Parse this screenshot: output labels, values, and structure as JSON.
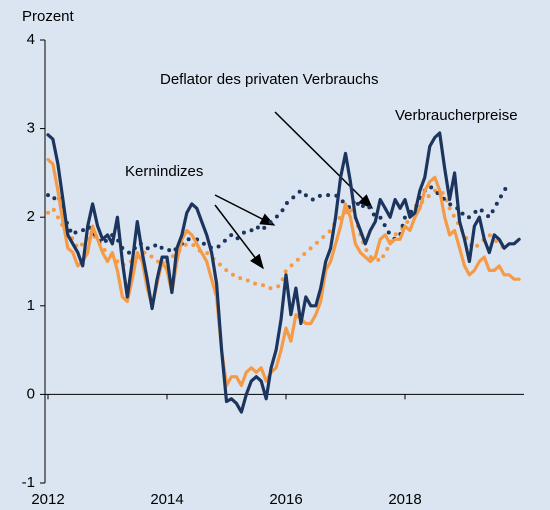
{
  "chart_data": {
    "type": "line",
    "ylabel": "Prozent",
    "annotations": [
      "Deflator des privaten Verbrauchs",
      "Verbraucherpreise",
      "Kernindizes"
    ],
    "xlim": [
      2012,
      2020
    ],
    "xticks": [
      2012,
      2014,
      2016,
      2018
    ],
    "ylim": [
      -1,
      4
    ],
    "yticks": [
      -1,
      0,
      1,
      2,
      3,
      4
    ],
    "x": [
      2012,
      2012.083,
      2012.167,
      2012.25,
      2012.333,
      2012.417,
      2012.5,
      2012.583,
      2012.667,
      2012.75,
      2012.833,
      2012.917,
      2013,
      2013.083,
      2013.167,
      2013.25,
      2013.333,
      2013.417,
      2013.5,
      2013.583,
      2013.667,
      2013.75,
      2013.833,
      2013.917,
      2014,
      2014.083,
      2014.167,
      2014.25,
      2014.333,
      2014.417,
      2014.5,
      2014.583,
      2014.667,
      2014.75,
      2014.833,
      2014.917,
      2015,
      2015.083,
      2015.167,
      2015.25,
      2015.333,
      2015.417,
      2015.5,
      2015.583,
      2015.667,
      2015.75,
      2015.833,
      2015.917,
      2016,
      2016.083,
      2016.167,
      2016.25,
      2016.333,
      2016.417,
      2016.5,
      2016.583,
      2016.667,
      2016.75,
      2016.833,
      2016.917,
      2017,
      2017.083,
      2017.167,
      2017.25,
      2017.333,
      2017.417,
      2017.5,
      2017.583,
      2017.667,
      2017.75,
      2017.833,
      2017.917,
      2018,
      2018.083,
      2018.167,
      2018.25,
      2018.333,
      2018.417,
      2018.5,
      2018.583,
      2018.667,
      2018.75,
      2018.833,
      2018.917,
      2019,
      2019.083,
      2019.167,
      2019.25,
      2019.333,
      2019.417,
      2019.5,
      2019.583,
      2019.667,
      2019.75,
      2019.833,
      2019.917
    ],
    "series": [
      {
        "color": "#1c355e",
        "style": "solid",
        "values": [
          2.93,
          2.88,
          2.6,
          2.2,
          1.8,
          1.7,
          1.6,
          1.45,
          1.9,
          2.15,
          1.9,
          1.75,
          1.8,
          1.7,
          2.0,
          1.5,
          1.1,
          1.5,
          1.95,
          1.6,
          1.3,
          0.97,
          1.3,
          1.55,
          1.55,
          1.15,
          1.65,
          1.8,
          2.05,
          2.15,
          2.1,
          1.95,
          1.8,
          1.6,
          1.25,
          0.5,
          -0.08,
          -0.05,
          -0.1,
          -0.2,
          0.0,
          0.15,
          0.2,
          0.15,
          -0.05,
          0.3,
          0.5,
          0.85,
          1.35,
          0.9,
          1.2,
          0.8,
          1.1,
          1.0,
          1.0,
          1.2,
          1.5,
          1.65,
          2.0,
          2.45,
          2.72,
          2.4,
          2.0,
          1.85,
          1.7,
          1.85,
          1.95,
          2.2,
          2.1,
          2.0,
          2.2,
          2.1,
          2.2,
          2.0,
          2.05,
          2.3,
          2.45,
          2.8,
          2.9,
          2.95,
          2.55,
          2.2,
          2.5,
          1.95,
          1.75,
          1.5,
          1.9,
          2.0,
          1.75,
          1.6,
          1.8,
          1.75,
          1.65,
          1.7,
          1.7,
          1.75
        ]
      },
      {
        "color": "#1c355e",
        "style": "dotted",
        "values": [
          2.25,
          2.2,
          2.25,
          2.1,
          1.9,
          1.8,
          1.85,
          1.85,
          1.9,
          1.85,
          1.75,
          1.7,
          1.75,
          1.8,
          1.75,
          1.65,
          1.6,
          1.6,
          1.7,
          1.7,
          1.65,
          1.65,
          1.7,
          1.65,
          1.65,
          1.6,
          1.65,
          1.7,
          1.75,
          1.75,
          1.75,
          1.7,
          1.7,
          1.65,
          1.65,
          1.7,
          1.75,
          1.8,
          1.75,
          1.8,
          1.85,
          1.85,
          1.9,
          1.85,
          1.9,
          1.95,
          2.0,
          2.05,
          2.15,
          2.2,
          2.25,
          2.3,
          2.25,
          2.2,
          2.2,
          2.25,
          2.25,
          2.25,
          2.25,
          2.2,
          2.15,
          2.1,
          2.2,
          2.1,
          2.15,
          2.1,
          2.0,
          2.0,
          1.9,
          1.8,
          1.75,
          1.8,
          2.0,
          2.05,
          2.1,
          2.2,
          2.3,
          2.35,
          2.3,
          2.25,
          2.2,
          2.15,
          2.1,
          2.1,
          2.0,
          2.0,
          2.05,
          2.1,
          2.05,
          2.0,
          2.1,
          2.2,
          2.3,
          2.38,
          null,
          null
        ]
      },
      {
        "color": "#f59a45",
        "style": "solid",
        "values": [
          2.65,
          2.6,
          2.3,
          1.95,
          1.65,
          1.6,
          1.45,
          1.5,
          1.6,
          1.9,
          1.75,
          1.6,
          1.5,
          1.6,
          1.4,
          1.1,
          1.05,
          1.3,
          1.6,
          1.5,
          1.2,
          1.0,
          1.25,
          1.5,
          1.4,
          1.15,
          1.5,
          1.75,
          1.85,
          1.8,
          1.7,
          1.6,
          1.5,
          1.3,
          1.1,
          0.5,
          0.1,
          0.2,
          0.2,
          0.1,
          0.25,
          0.3,
          0.25,
          0.3,
          0.15,
          0.25,
          0.3,
          0.5,
          0.75,
          0.6,
          0.9,
          0.85,
          0.8,
          0.8,
          0.9,
          1.05,
          1.4,
          1.5,
          1.7,
          1.9,
          2.15,
          2.0,
          1.7,
          1.6,
          1.55,
          1.5,
          1.55,
          1.75,
          1.8,
          1.7,
          1.75,
          1.75,
          1.9,
          1.85,
          2.0,
          2.1,
          2.3,
          2.4,
          2.45,
          2.3,
          2.0,
          1.8,
          1.85,
          1.65,
          1.45,
          1.35,
          1.4,
          1.5,
          1.55,
          1.4,
          1.4,
          1.45,
          1.35,
          1.35,
          1.3,
          1.3
        ]
      },
      {
        "color": "#f59a45",
        "style": "dotted",
        "values": [
          2.05,
          2.1,
          2.0,
          1.9,
          1.85,
          1.75,
          1.65,
          1.7,
          1.75,
          1.8,
          1.75,
          1.65,
          1.6,
          1.55,
          1.5,
          1.45,
          1.5,
          1.5,
          1.55,
          1.6,
          1.6,
          1.55,
          1.5,
          1.5,
          1.5,
          1.55,
          1.6,
          1.65,
          1.7,
          1.7,
          1.65,
          1.6,
          1.6,
          1.55,
          1.5,
          1.45,
          1.4,
          1.35,
          1.35,
          1.3,
          1.3,
          1.25,
          1.25,
          1.25,
          1.2,
          1.2,
          1.2,
          1.25,
          1.4,
          1.45,
          1.5,
          1.55,
          1.6,
          1.65,
          1.7,
          1.75,
          1.8,
          1.85,
          1.95,
          2.0,
          2.05,
          2.1,
          2.0,
          1.8,
          1.65,
          1.55,
          1.55,
          1.5,
          1.6,
          1.7,
          1.8,
          1.85,
          1.9,
          2.0,
          2.1,
          2.15,
          2.2,
          2.25,
          2.3,
          2.3,
          2.25,
          2.1,
          2.0,
          1.9,
          1.8,
          1.7,
          1.65,
          1.7,
          1.75,
          1.8,
          1.75,
          1.7,
          1.65,
          1.65,
          null,
          null
        ]
      }
    ]
  }
}
